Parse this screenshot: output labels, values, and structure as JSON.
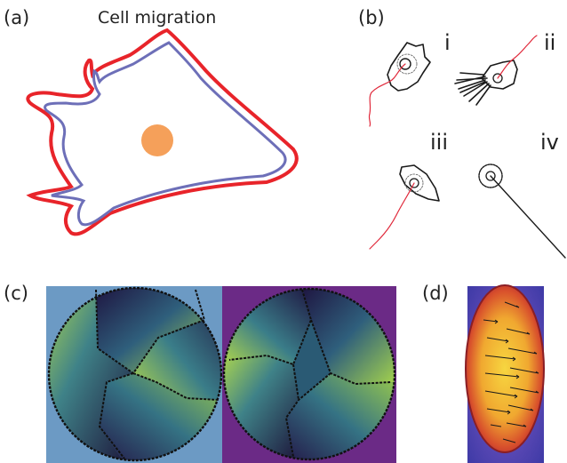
{
  "panels": {
    "a": {
      "label": "(a)",
      "title": "Cell migration"
    },
    "b": {
      "label": "(b)",
      "subpanels": [
        "i",
        "ii",
        "iii",
        "iv"
      ]
    },
    "c": {
      "label": "(c)"
    },
    "d": {
      "label": "(d)"
    }
  },
  "colors": {
    "outer_membrane": "#e8242a",
    "inner_membrane": "#6d6fb8",
    "nucleus": "#f5a05a",
    "trajectory": "#e0283a",
    "cell_sketch": "#1a1a1a",
    "tile_blue_bg": "#6c9ac4",
    "tile_purple_bg": "#6b2a86",
    "domain_dark": "#241a4d",
    "domain_mid": "#3d7a8a",
    "domain_bright": "#a8d24a",
    "field_bg": "#4b3aa8",
    "field_core": "#f0c23a",
    "field_edge": "#c8382e"
  }
}
